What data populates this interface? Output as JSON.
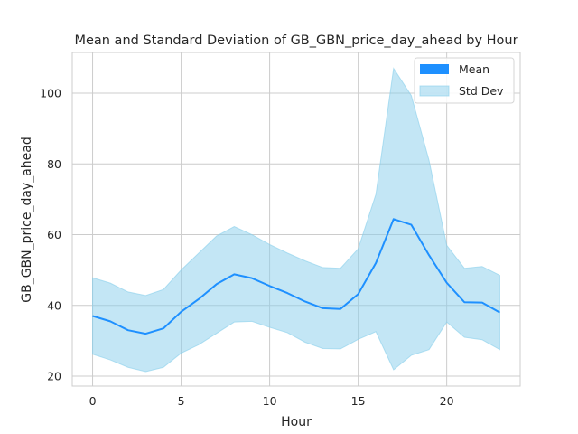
{
  "chart_data": {
    "type": "line",
    "title": "Mean and Standard Deviation of GB_GBN_price_day_ahead by Hour",
    "xlabel": "Hour",
    "ylabel": "GB_GBN_price_day_ahead",
    "xlim": [
      -1.15,
      24.15
    ],
    "ylim": [
      17.2,
      111.5
    ],
    "xticks": [
      0,
      5,
      10,
      15,
      20
    ],
    "yticks": [
      20,
      40,
      60,
      80,
      100
    ],
    "grid": true,
    "legend_position": "top-right",
    "x": [
      0,
      1,
      2,
      3,
      4,
      5,
      6,
      7,
      8,
      9,
      10,
      11,
      12,
      13,
      14,
      15,
      16,
      17,
      18,
      19,
      20,
      21,
      22,
      23
    ],
    "series": [
      {
        "name": "Mean",
        "kind": "line",
        "color": "#1e90ff",
        "values": [
          37.0,
          35.5,
          33.0,
          32.0,
          33.5,
          38.2,
          41.8,
          46.0,
          48.8,
          47.7,
          45.5,
          43.5,
          41.1,
          39.2,
          39.0,
          43.2,
          52.0,
          64.4,
          62.8,
          54.2,
          46.4,
          40.9,
          40.8,
          38.0
        ]
      },
      {
        "name": "Std Dev",
        "kind": "band",
        "color": "#87ceeb",
        "upper": [
          47.8,
          46.3,
          43.8,
          42.8,
          44.5,
          50.0,
          54.8,
          59.6,
          62.3,
          60.0,
          57.2,
          54.8,
          52.6,
          50.7,
          50.5,
          56.0,
          71.4,
          107.0,
          99.3,
          81.0,
          57.0,
          50.5,
          51.0,
          48.5
        ],
        "lower": [
          26.2,
          24.6,
          22.5,
          21.3,
          22.5,
          26.5,
          28.9,
          32.1,
          35.3,
          35.5,
          33.8,
          32.3,
          29.6,
          27.8,
          27.7,
          30.4,
          32.6,
          21.8,
          25.9,
          27.5,
          35.3,
          31.0,
          30.3,
          27.5
        ]
      }
    ]
  }
}
